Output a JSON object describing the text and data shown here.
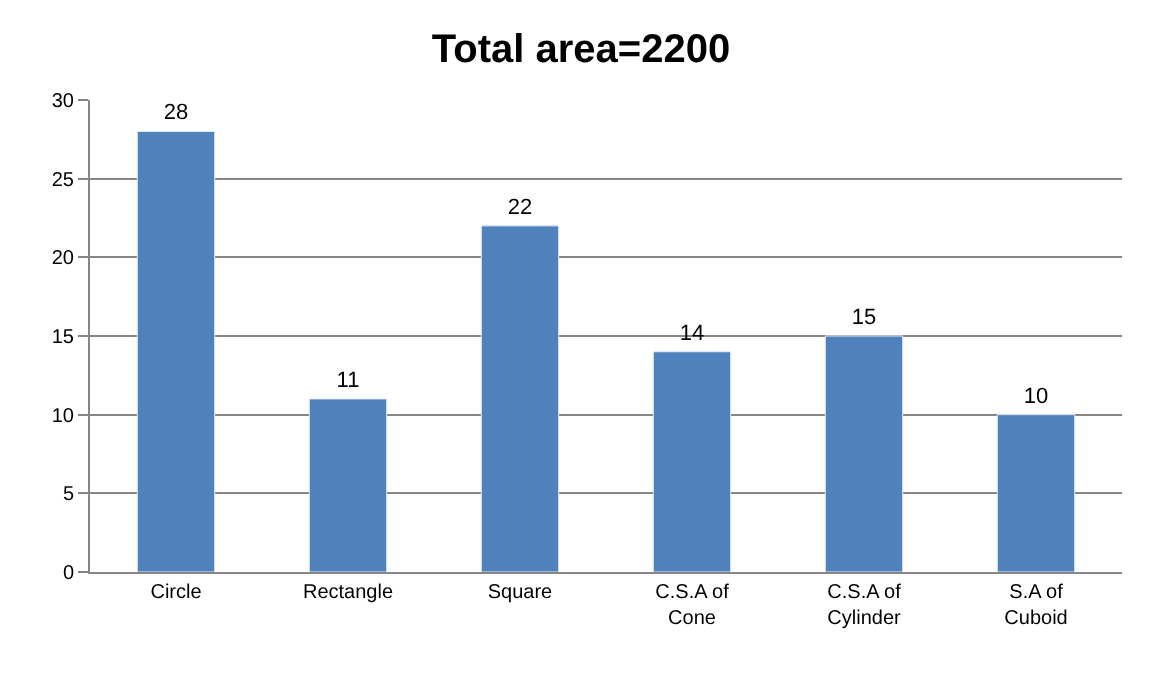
{
  "chart_data": {
    "type": "bar",
    "title": "Total area=2200",
    "categories": [
      "Circle",
      "Rectangle",
      "Square",
      "C.S.A of Cone",
      "C.S.A of Cylinder",
      "S.A of Cuboid"
    ],
    "values": [
      28,
      11,
      22,
      14,
      15,
      10
    ],
    "color": "#4f81bd",
    "ylim": [
      0,
      30
    ],
    "yticks": [
      0,
      5,
      10,
      15,
      20,
      25,
      30
    ],
    "grid": "y",
    "data_labels": true
  }
}
